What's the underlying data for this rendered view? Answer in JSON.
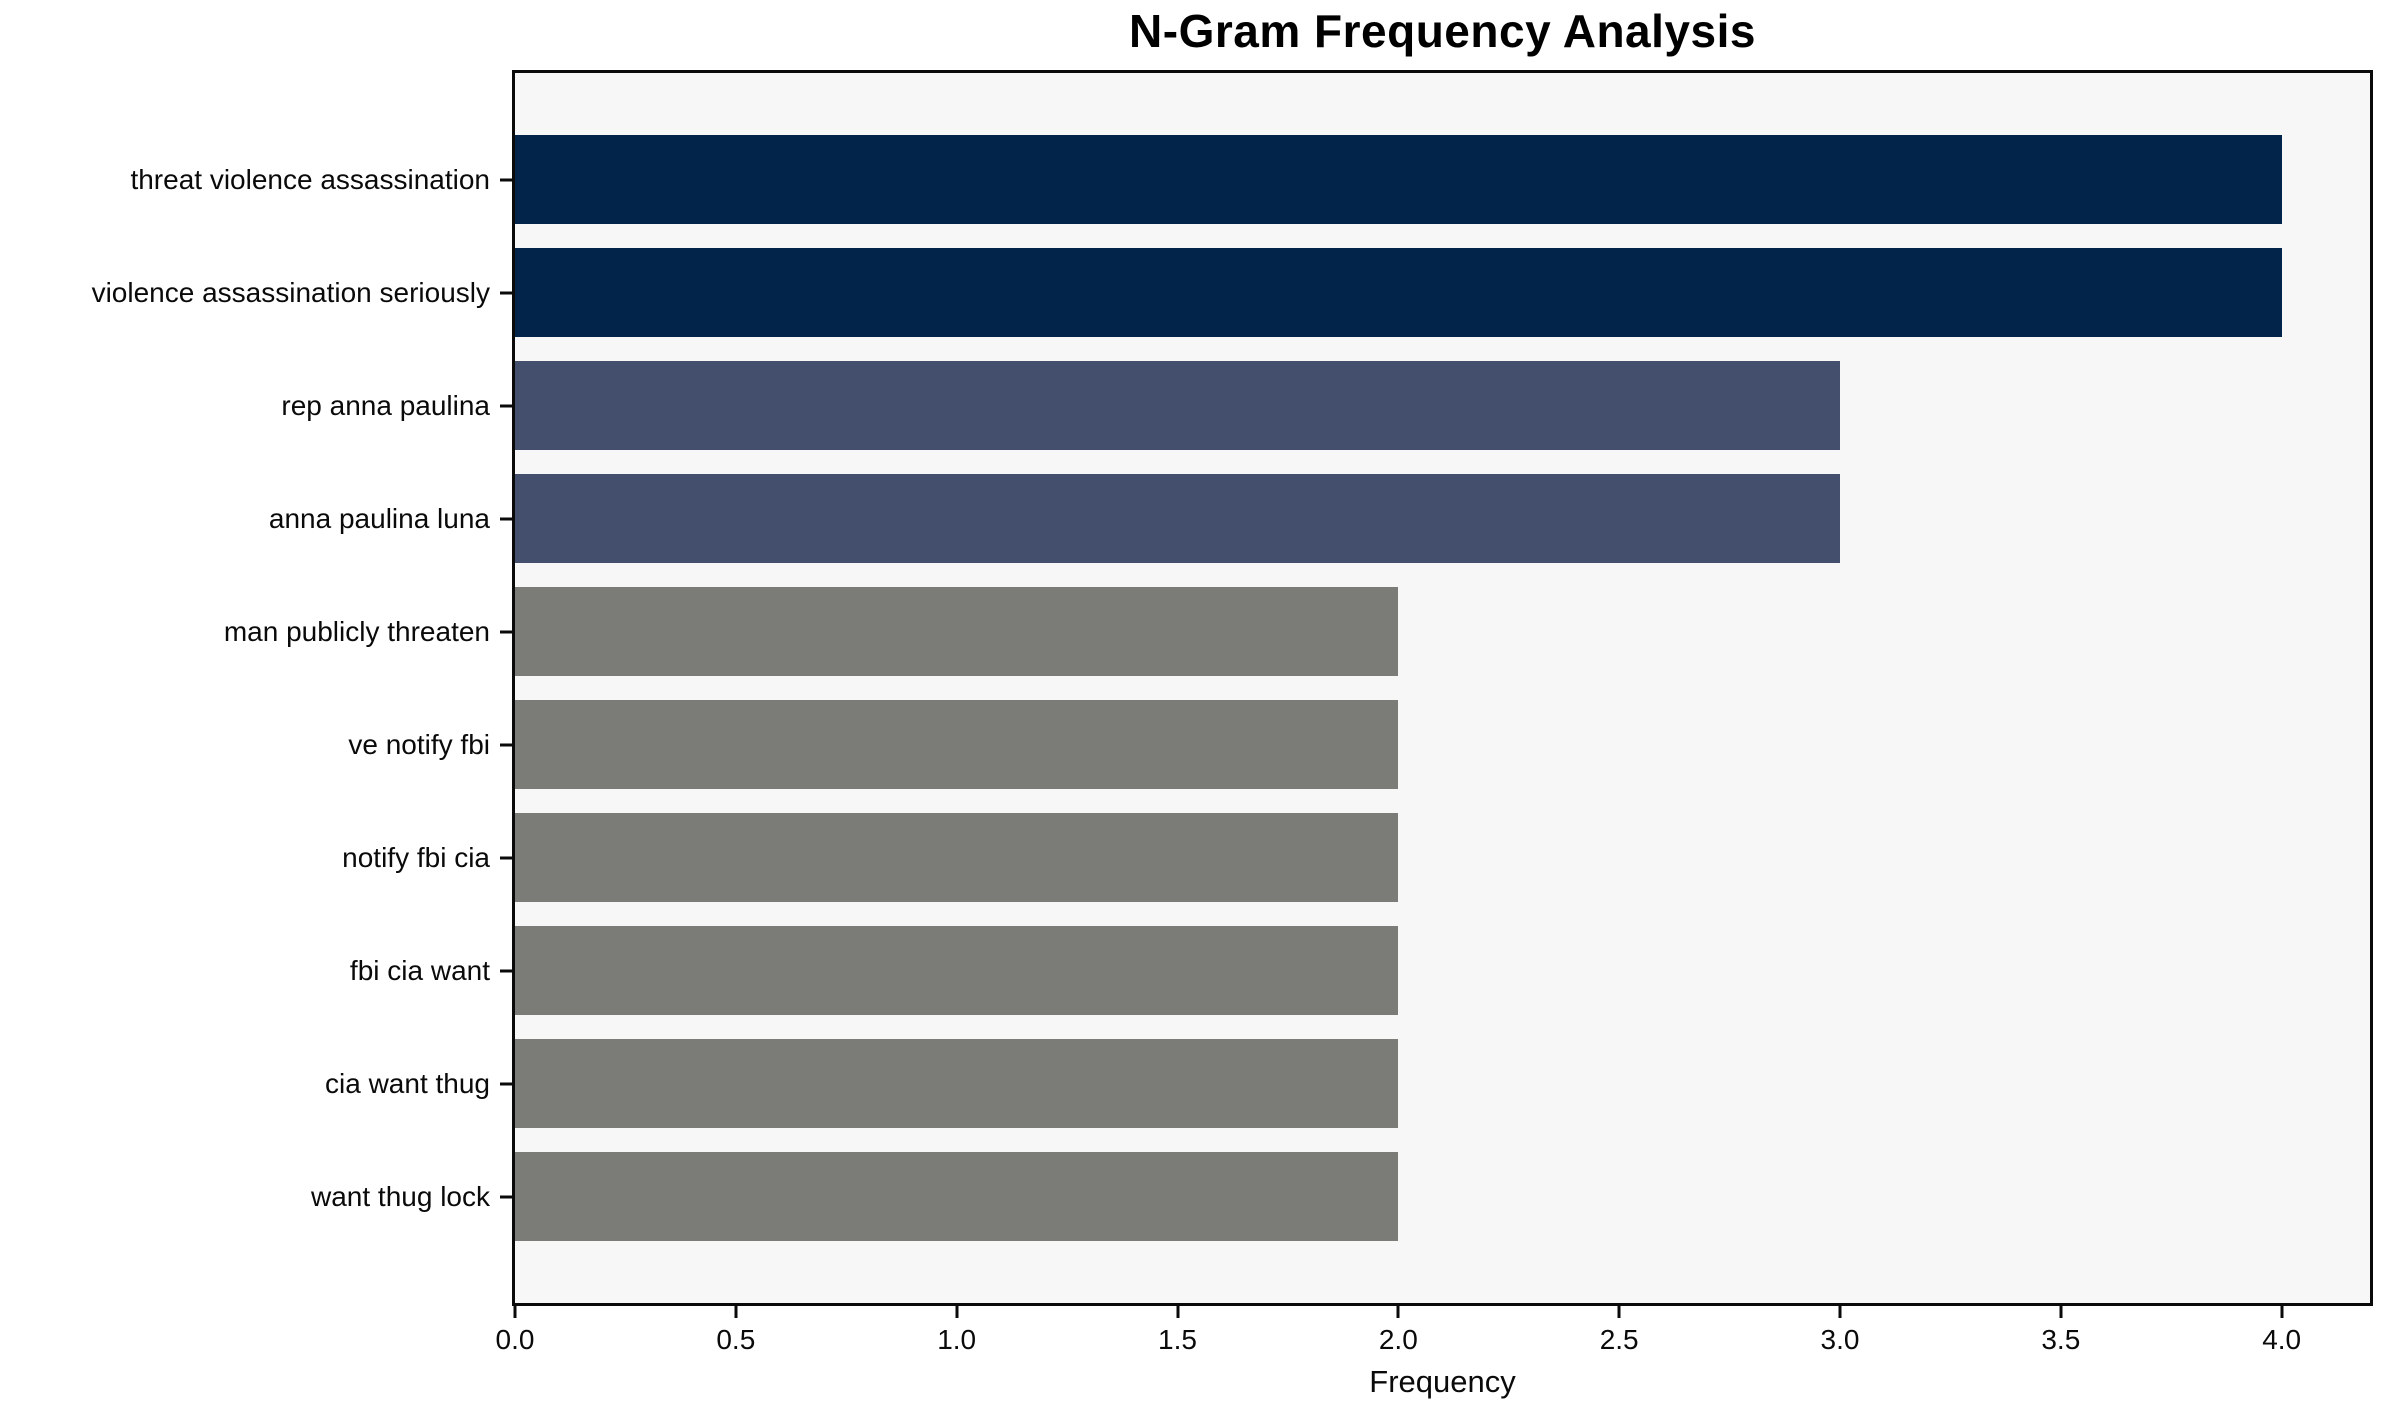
{
  "chart_data": {
    "type": "bar",
    "orientation": "horizontal",
    "title": "N-Gram Frequency Analysis",
    "xlabel": "Frequency",
    "ylabel": "",
    "categories": [
      "threat violence assassination",
      "violence assassination seriously",
      "rep anna paulina",
      "anna paulina luna",
      "man publicly threaten",
      "ve notify fbi",
      "notify fbi cia",
      "fbi cia want",
      "cia want thug",
      "want thug lock"
    ],
    "values": [
      4,
      4,
      3,
      3,
      2,
      2,
      2,
      2,
      2,
      2
    ],
    "bar_colors": [
      "#03244A",
      "#03244A",
      "#444F6E",
      "#444F6E",
      "#7B7B77",
      "#7B7B77",
      "#7B7B77",
      "#7B7B77",
      "#7B7B77",
      "#7B7B77"
    ],
    "x_ticks": [
      0.0,
      0.5,
      1.0,
      1.5,
      2.0,
      2.5,
      3.0,
      3.5,
      4.0
    ],
    "x_tick_labels": [
      "0.0",
      "0.5",
      "1.0",
      "1.5",
      "2.0",
      "2.5",
      "3.0",
      "3.5",
      "4.0"
    ],
    "xlim": [
      0,
      4.2
    ],
    "grid": false,
    "legend": null,
    "colors": {
      "plot_background": "#F7F7F7",
      "figure_background": "#FFFFFF",
      "axis": "#0A0A0A",
      "tick_label": "#0A0A0A"
    }
  }
}
